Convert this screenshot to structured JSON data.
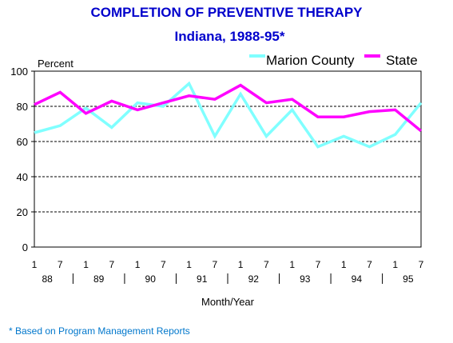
{
  "chart_data": {
    "type": "line",
    "title": "COMPLETION OF PREVENTIVE THERAPY",
    "subtitle": "Indiana, 1988-95*",
    "ylabel": "Percent",
    "xlabel": "Month/Year",
    "ylim": [
      0,
      100
    ],
    "yticks": [
      0,
      20,
      40,
      60,
      80,
      100
    ],
    "grid": "dashed-horizontal",
    "legend": "top-right",
    "x_months": [
      "1",
      "7",
      "1",
      "7",
      "1",
      "7",
      "1",
      "7",
      "1",
      "7",
      "1",
      "7",
      "1",
      "7",
      "1",
      "7"
    ],
    "x_years": [
      "88",
      "89",
      "90",
      "91",
      "92",
      "93",
      "94",
      "95"
    ],
    "series": [
      {
        "name": "Marion County",
        "color": "#80ffff",
        "values": [
          65,
          69,
          79,
          68,
          82,
          80,
          93,
          63,
          87,
          63,
          78,
          57,
          63,
          57,
          64,
          82
        ]
      },
      {
        "name": "State",
        "color": "#ff00ff",
        "values": [
          81,
          88,
          76,
          83,
          78,
          82,
          86,
          84,
          92,
          82,
          84,
          74,
          74,
          77,
          78,
          66
        ]
      }
    ]
  },
  "footnote": "* Based on Program Management Reports"
}
